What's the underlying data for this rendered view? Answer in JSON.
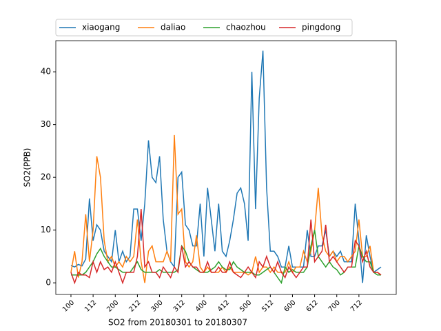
{
  "chart_data": {
    "type": "line",
    "xlabel": "SO2 from 20180301 to 20180307",
    "ylabel": "SO2(PPB)",
    "categories": [
      "100",
      null,
      null,
      null,
      null,
      null,
      "112",
      null,
      null,
      null,
      null,
      null,
      "200",
      null,
      null,
      null,
      null,
      null,
      "212",
      null,
      null,
      null,
      null,
      null,
      "300",
      null,
      null,
      null,
      null,
      null,
      "312",
      null,
      null,
      null,
      null,
      null,
      "400",
      null,
      null,
      null,
      null,
      null,
      "412",
      null,
      null,
      null,
      null,
      null,
      "500",
      null,
      null,
      null,
      null,
      null,
      "512",
      null,
      null,
      null,
      null,
      null,
      "600",
      null,
      null,
      null,
      null,
      null,
      "612",
      null,
      null,
      null,
      null,
      null,
      "700",
      null,
      null,
      null,
      null,
      null,
      "712",
      null,
      null,
      null,
      null,
      null,
      null
    ],
    "series": [
      {
        "name": "xiaogang",
        "color": "#1f77b4",
        "values": [
          3.3,
          3,
          3.5,
          3.2,
          4.5,
          16,
          8,
          11,
          10,
          6,
          5,
          4,
          10,
          4,
          6,
          4,
          5,
          14,
          14,
          8,
          15,
          27,
          20,
          19,
          24,
          12,
          6,
          4,
          3,
          20,
          21,
          11,
          10,
          7,
          7,
          15,
          5,
          18,
          12,
          6,
          15,
          6,
          5,
          8,
          12,
          17,
          18,
          15,
          8,
          40,
          14,
          35,
          44,
          18,
          6,
          6,
          5,
          3,
          3,
          7,
          3,
          3,
          3,
          3,
          10,
          5,
          5,
          7,
          7,
          10,
          5,
          6,
          5,
          6,
          4,
          4,
          4,
          15,
          8,
          0,
          9,
          5,
          2,
          2.5,
          3
        ]
      },
      {
        "name": "daliao",
        "color": "#ff7f0e",
        "values": [
          2,
          6,
          1,
          4,
          13,
          4,
          10,
          24,
          20,
          8,
          4,
          5,
          3,
          4,
          3,
          5,
          4,
          5,
          12,
          4,
          0,
          6,
          7,
          4,
          4,
          4,
          6,
          4,
          28,
          13,
          14,
          4,
          3,
          4,
          9,
          3,
          2,
          3,
          2,
          2,
          2,
          3,
          2,
          3,
          2,
          2,
          2,
          2,
          1.5,
          2,
          5,
          2,
          3,
          3,
          2,
          3,
          2,
          2,
          2,
          4,
          2,
          3,
          3,
          6,
          4,
          6,
          10,
          18,
          9,
          6,
          5,
          6,
          4,
          5,
          5,
          4,
          5,
          6,
          12,
          5,
          5,
          7,
          2,
          2,
          1.5
        ]
      },
      {
        "name": "chaozhou",
        "color": "#2ca02c",
        "values": [
          1.5,
          1.5,
          1.5,
          1.5,
          2,
          3,
          4,
          5.5,
          6.5,
          5,
          4,
          3,
          3,
          2.5,
          2,
          2,
          2,
          3,
          4,
          2.5,
          2,
          2,
          2,
          2,
          2.5,
          2,
          2,
          2,
          2,
          2.5,
          7,
          6,
          4,
          3,
          2.5,
          2,
          2,
          2,
          2.5,
          3,
          4,
          3,
          2.5,
          2.5,
          4,
          3,
          2.5,
          2,
          2,
          2,
          1.5,
          1.5,
          2,
          2.5,
          3,
          2,
          1,
          0,
          3,
          2,
          2.5,
          2,
          2,
          2,
          3,
          7,
          10,
          5,
          4,
          3,
          4,
          3,
          2.5,
          1.5,
          2,
          3,
          3,
          3,
          7,
          5,
          4,
          4,
          2,
          1.5,
          1.5
        ]
      },
      {
        "name": "pingdong",
        "color": "#d62728",
        "values": [
          2,
          0,
          2,
          1.5,
          1.5,
          1,
          4,
          2,
          4,
          2.5,
          3,
          2,
          4,
          2,
          0,
          2,
          2,
          2,
          5,
          14,
          3,
          4,
          2,
          2,
          1,
          3,
          2,
          1,
          3,
          2,
          7,
          3,
          4,
          3,
          3,
          2,
          2,
          4,
          2,
          2,
          3,
          2,
          2,
          4,
          2,
          1.5,
          1,
          2,
          3,
          2,
          1,
          4,
          3,
          5,
          3,
          2,
          4,
          2,
          1,
          3,
          2,
          1,
          2,
          3,
          3,
          12,
          4,
          5,
          6,
          11,
          4,
          5,
          4,
          3,
          2,
          3,
          3,
          8,
          7,
          4,
          6,
          3,
          2,
          2,
          1.5
        ]
      }
    ],
    "xlim": [
      -4.1,
      88.1
    ],
    "ylim": [
      -2.2,
      45.9
    ],
    "yticks": [
      0,
      10,
      20,
      30,
      40
    ],
    "legend": "top"
  }
}
